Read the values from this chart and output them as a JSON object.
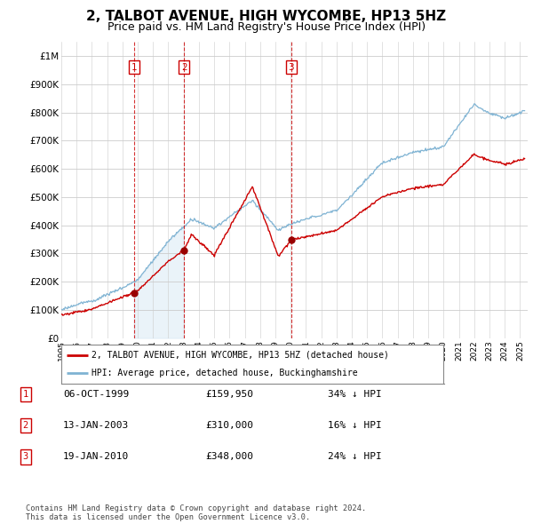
{
  "title": "2, TALBOT AVENUE, HIGH WYCOMBE, HP13 5HZ",
  "subtitle": "Price paid vs. HM Land Registry's House Price Index (HPI)",
  "title_fontsize": 11,
  "subtitle_fontsize": 9,
  "ylim": [
    0,
    1050000
  ],
  "yticks": [
    0,
    100000,
    200000,
    300000,
    400000,
    500000,
    600000,
    700000,
    800000,
    900000,
    1000000
  ],
  "ytick_labels": [
    "£0",
    "£100K",
    "£200K",
    "£300K",
    "£400K",
    "£500K",
    "£600K",
    "£700K",
    "£800K",
    "£900K",
    "£1M"
  ],
  "hpi_color": "#7fb3d3",
  "hpi_fill_color": "#d6e8f5",
  "sale_color": "#cc0000",
  "dashed_color": "#cc0000",
  "sale_years": [
    1999.75,
    2003.04,
    2010.04
  ],
  "sale_prices": [
    159950,
    310000,
    348000
  ],
  "sale_labels": [
    "1",
    "2",
    "3"
  ],
  "table_rows": [
    {
      "num": "1",
      "date": "06-OCT-1999",
      "price": "£159,950",
      "pct": "34% ↓ HPI"
    },
    {
      "num": "2",
      "date": "13-JAN-2003",
      "price": "£310,000",
      "pct": "16% ↓ HPI"
    },
    {
      "num": "3",
      "date": "19-JAN-2010",
      "price": "£348,000",
      "pct": "24% ↓ HPI"
    }
  ],
  "legend_label_sale": "2, TALBOT AVENUE, HIGH WYCOMBE, HP13 5HZ (detached house)",
  "legend_label_hpi": "HPI: Average price, detached house, Buckinghamshire",
  "footer": "Contains HM Land Registry data © Crown copyright and database right 2024.\nThis data is licensed under the Open Government Licence v3.0.",
  "background_color": "#ffffff",
  "xlim_start": 1995,
  "xlim_end": 2025.5
}
